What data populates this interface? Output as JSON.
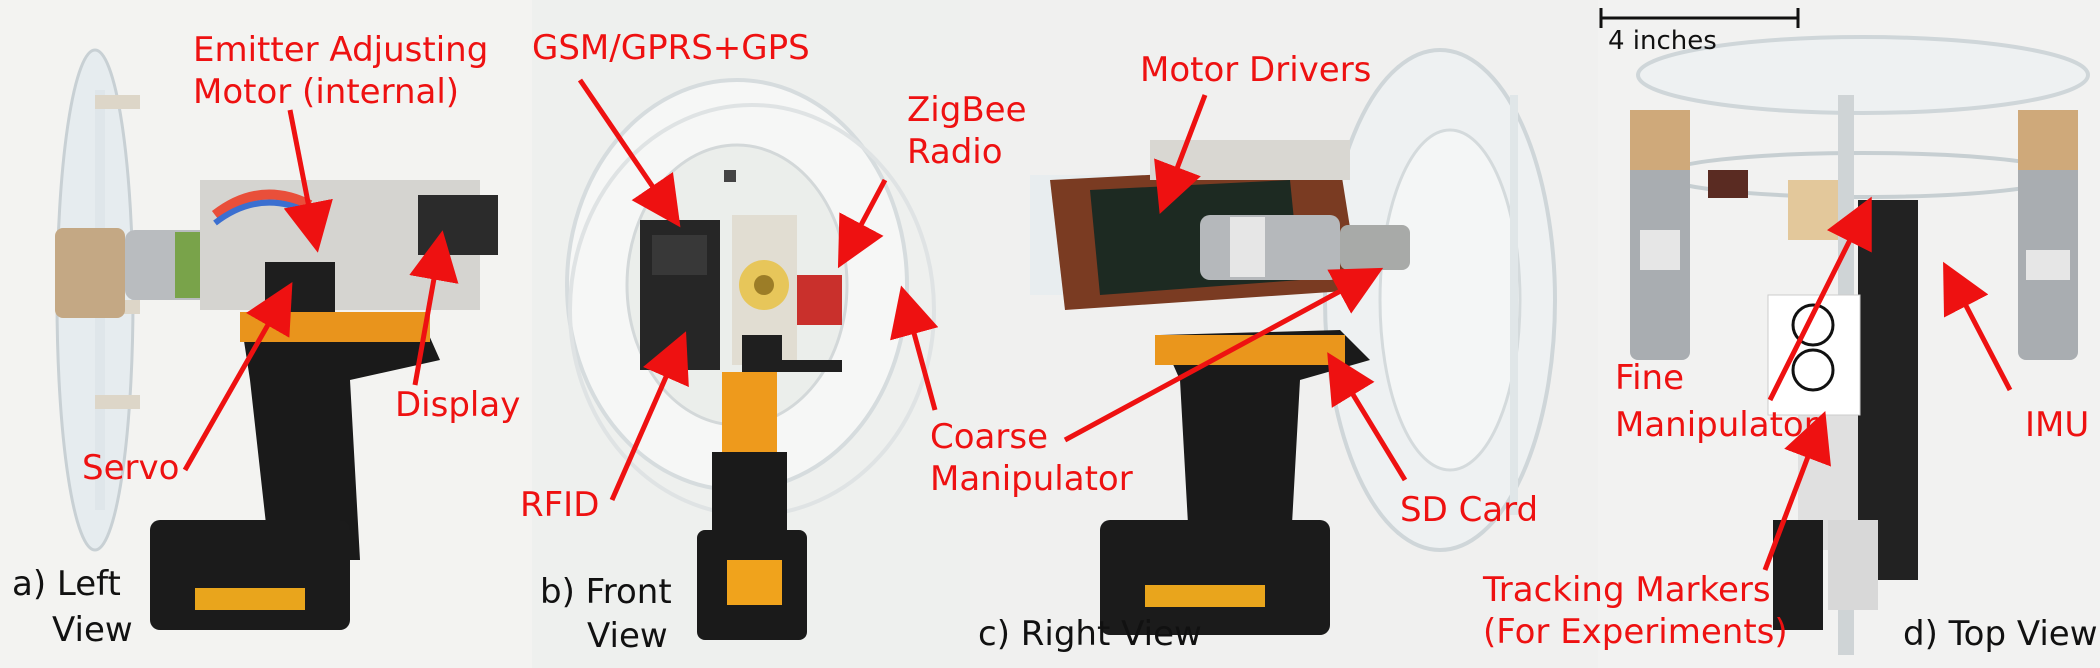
{
  "colors": {
    "label": "#ee1111",
    "caption": "#111111",
    "background": "#ffffff"
  },
  "panels": {
    "a": {
      "caption_line1": "a) Left",
      "caption_line2": "View"
    },
    "b": {
      "caption_line1": "b) Front",
      "caption_line2": "View"
    },
    "c": {
      "caption": "c) Right View"
    },
    "d": {
      "caption": "d) Top View",
      "scale_text": "4 inches"
    }
  },
  "labels": {
    "emitter_line1": "Emitter Adjusting",
    "emitter_line2": "Motor (internal)",
    "display": "Display",
    "servo": "Servo",
    "gsm": "GSM/GPRS+GPS",
    "zigbee_line1": "ZigBee",
    "zigbee_line2": "Radio",
    "rfid": "RFID",
    "coarse_line1": "Coarse",
    "coarse_line2": "Manipulator",
    "motor_drivers": "Motor Drivers",
    "sd_card": "SD Card",
    "fine_line1": "Fine",
    "fine_line2": "Manipulator",
    "imu": "IMU",
    "tracking_line1": "Tracking Markers",
    "tracking_line2": "(For Experiments)"
  }
}
